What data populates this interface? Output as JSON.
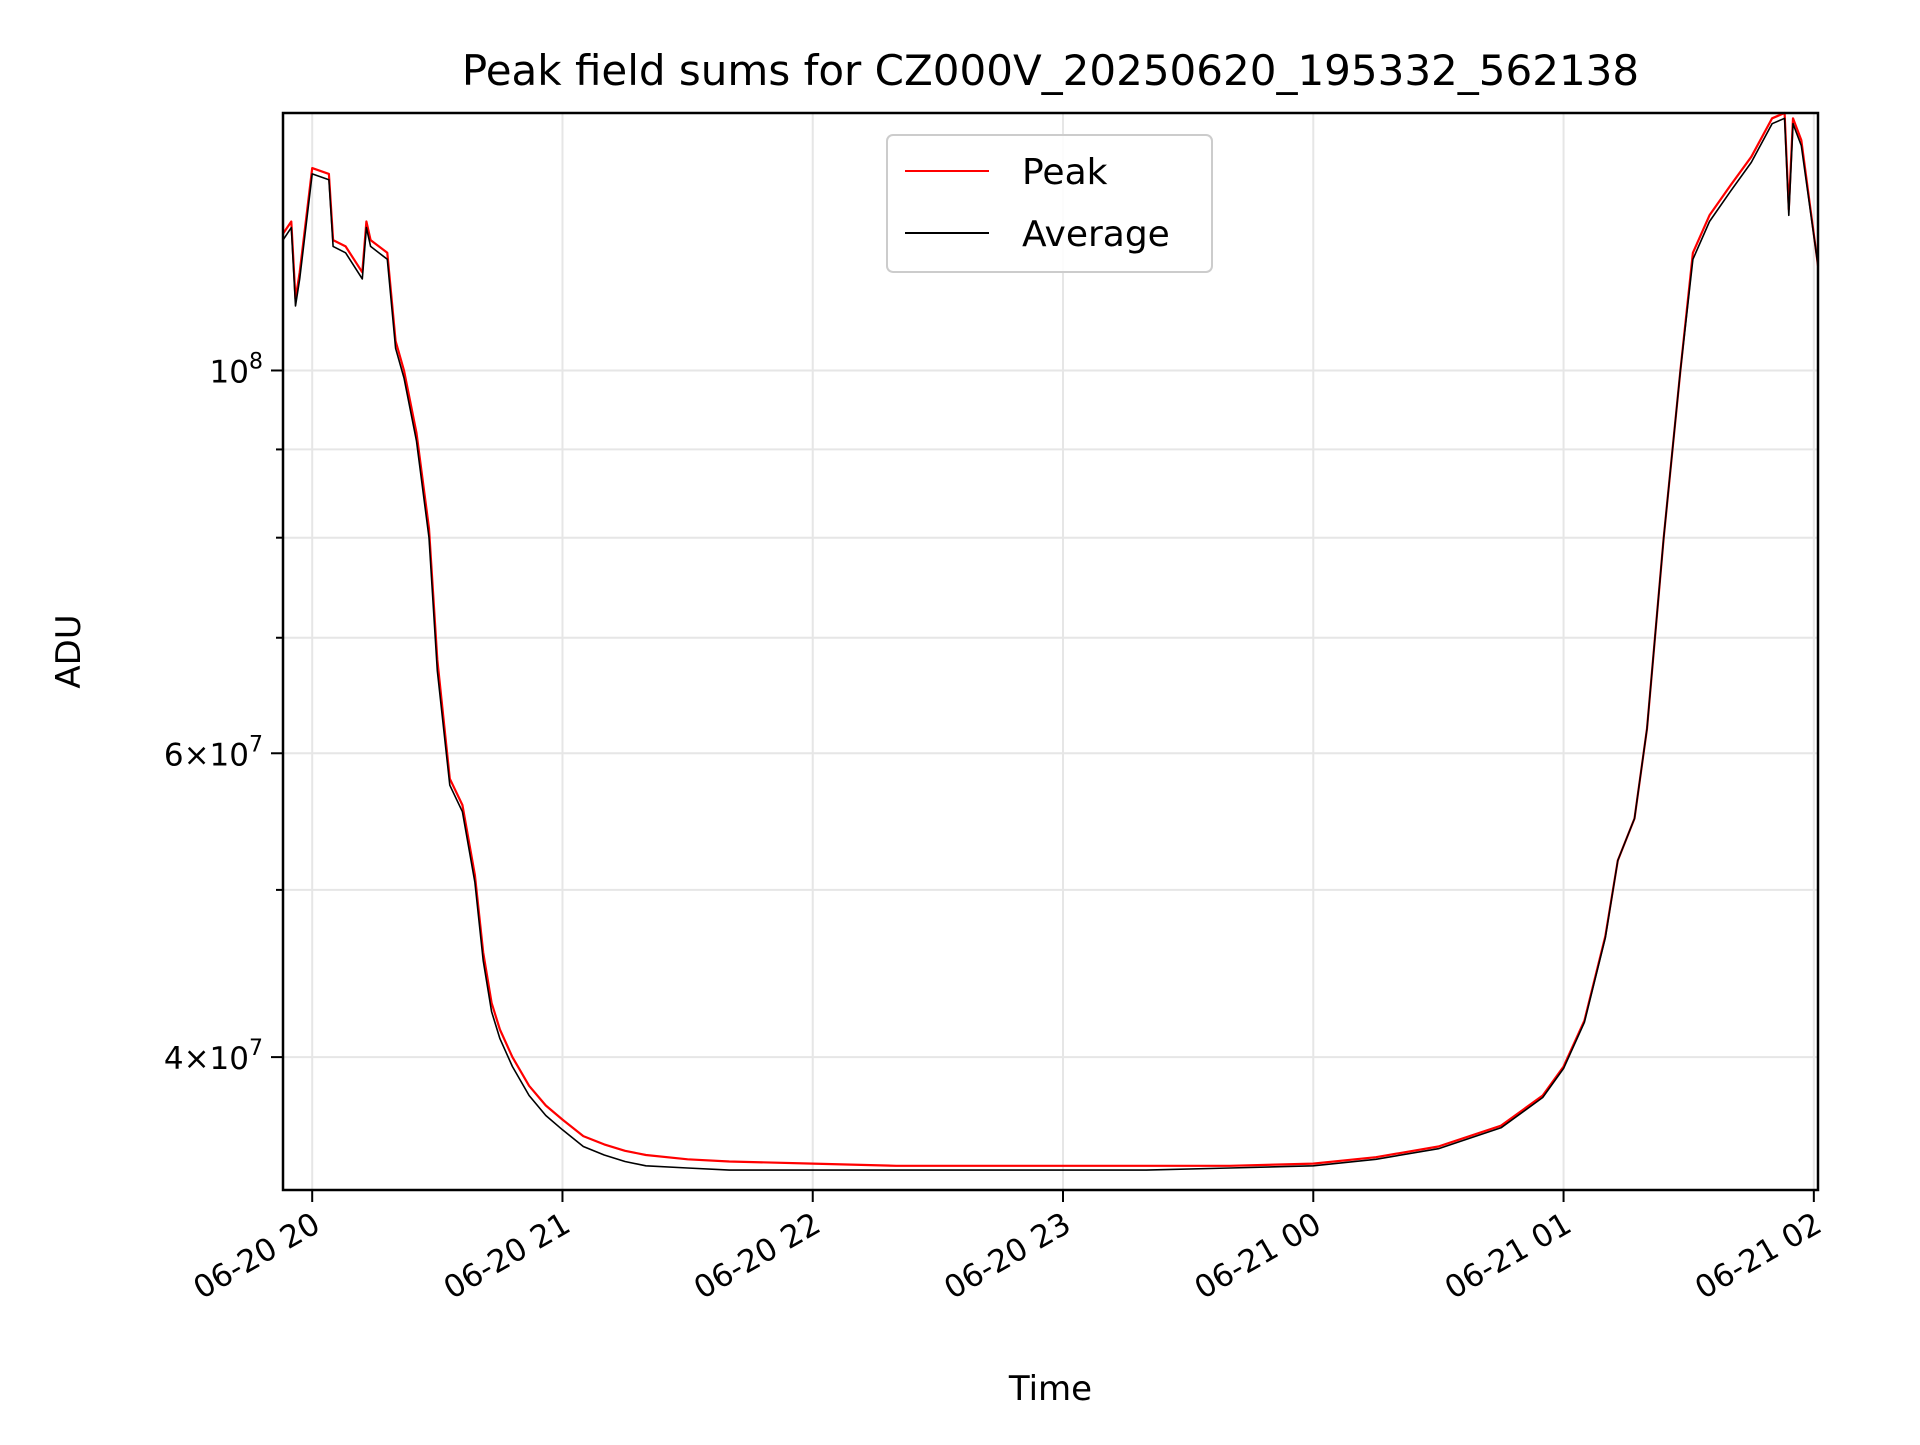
{
  "chart_data": {
    "type": "line",
    "title": "Peak field sums for CZ000V_20250620_195332_562138",
    "xlabel": "Time",
    "ylabel": "ADU",
    "yscale": "log",
    "ylim": [
      33500000,
      141000000
    ],
    "xlim": [
      "2025-06-20 19:53",
      "2025-06-21 02:01"
    ],
    "grid": true,
    "legend_position": "top-center",
    "x_ticks": [
      {
        "value": "2025-06-20 20:00",
        "label": "06-20 20"
      },
      {
        "value": "2025-06-20 21:00",
        "label": "06-20 21"
      },
      {
        "value": "2025-06-20 22:00",
        "label": "06-20 22"
      },
      {
        "value": "2025-06-20 23:00",
        "label": "06-20 23"
      },
      {
        "value": "2025-06-21 00:00",
        "label": "06-21 00"
      },
      {
        "value": "2025-06-21 01:00",
        "label": "06-21 01"
      },
      {
        "value": "2025-06-21 02:00",
        "label": "06-21 02"
      }
    ],
    "y_major_ticks": [
      {
        "value": 100000000,
        "label_mantissa": "",
        "label_base": "10",
        "label_exp": "8"
      },
      {
        "value": 60000000,
        "label_mantissa": "6×",
        "label_base": "10",
        "label_exp": "7"
      },
      {
        "value": 40000000,
        "label_mantissa": "4×",
        "label_base": "10",
        "label_exp": "7"
      }
    ],
    "y_minor_ticks": [
      50000000,
      70000000,
      80000000,
      90000000
    ],
    "series": [
      {
        "name": "Peak",
        "color": "#ff0000",
        "x": [
          "2025-06-20 19:53",
          "2025-06-20 19:55",
          "2025-06-20 19:56",
          "2025-06-20 19:57",
          "2025-06-20 19:59",
          "2025-06-20 20:00",
          "2025-06-20 20:04",
          "2025-06-20 20:05",
          "2025-06-20 20:08",
          "2025-06-20 20:12",
          "2025-06-20 20:13",
          "2025-06-20 20:14",
          "2025-06-20 20:18",
          "2025-06-20 20:20",
          "2025-06-20 20:22",
          "2025-06-20 20:25",
          "2025-06-20 20:28",
          "2025-06-20 20:30",
          "2025-06-20 20:33",
          "2025-06-20 20:36",
          "2025-06-20 20:39",
          "2025-06-20 20:41",
          "2025-06-20 20:43",
          "2025-06-20 20:45",
          "2025-06-20 20:48",
          "2025-06-20 20:52",
          "2025-06-20 20:56",
          "2025-06-20 21:00",
          "2025-06-20 21:05",
          "2025-06-20 21:10",
          "2025-06-20 21:15",
          "2025-06-20 21:20",
          "2025-06-20 21:30",
          "2025-06-20 21:40",
          "2025-06-20 22:00",
          "2025-06-20 22:20",
          "2025-06-20 22:40",
          "2025-06-20 23:00",
          "2025-06-20 23:20",
          "2025-06-20 23:40",
          "2025-06-21 00:00",
          "2025-06-21 00:15",
          "2025-06-21 00:30",
          "2025-06-21 00:45",
          "2025-06-21 00:55",
          "2025-06-21 01:00",
          "2025-06-21 01:05",
          "2025-06-21 01:10",
          "2025-06-21 01:13",
          "2025-06-21 01:17",
          "2025-06-21 01:20",
          "2025-06-21 01:24",
          "2025-06-21 01:28",
          "2025-06-21 01:31",
          "2025-06-21 01:35",
          "2025-06-21 01:40",
          "2025-06-21 01:45",
          "2025-06-21 01:50",
          "2025-06-21 01:53",
          "2025-06-21 01:54",
          "2025-06-21 01:55",
          "2025-06-21 01:57",
          "2025-06-21 02:01"
        ],
        "values": [
          120000000,
          122000000,
          110000000,
          114000000,
          125000000,
          131000000,
          130000000,
          119000000,
          118000000,
          114000000,
          122000000,
          119000000,
          117000000,
          104000000,
          100000000,
          92000000,
          81000000,
          68000000,
          58000000,
          56000000,
          51000000,
          46000000,
          43000000,
          41500000,
          40000000,
          38500000,
          37500000,
          36800000,
          36000000,
          35600000,
          35300000,
          35100000,
          34900000,
          34800000,
          34700000,
          34600000,
          34600000,
          34600000,
          34600000,
          34600000,
          34700000,
          35000000,
          35500000,
          36500000,
          38000000,
          39500000,
          42000000,
          47000000,
          52000000,
          55000000,
          62000000,
          80000000,
          100000000,
          117000000,
          123000000,
          128000000,
          133000000,
          140000000,
          141000000,
          124000000,
          140000000,
          136000000,
          115000000
        ]
      },
      {
        "name": "Average",
        "color": "#000000",
        "x": [
          "2025-06-20 19:53",
          "2025-06-20 19:55",
          "2025-06-20 19:56",
          "2025-06-20 19:57",
          "2025-06-20 19:59",
          "2025-06-20 20:00",
          "2025-06-20 20:04",
          "2025-06-20 20:05",
          "2025-06-20 20:08",
          "2025-06-20 20:12",
          "2025-06-20 20:13",
          "2025-06-20 20:14",
          "2025-06-20 20:18",
          "2025-06-20 20:20",
          "2025-06-20 20:22",
          "2025-06-20 20:25",
          "2025-06-20 20:28",
          "2025-06-20 20:30",
          "2025-06-20 20:33",
          "2025-06-20 20:36",
          "2025-06-20 20:39",
          "2025-06-20 20:41",
          "2025-06-20 20:43",
          "2025-06-20 20:45",
          "2025-06-20 20:48",
          "2025-06-20 20:52",
          "2025-06-20 20:56",
          "2025-06-20 21:00",
          "2025-06-20 21:05",
          "2025-06-20 21:10",
          "2025-06-20 21:15",
          "2025-06-20 21:20",
          "2025-06-20 21:30",
          "2025-06-20 21:40",
          "2025-06-20 22:00",
          "2025-06-20 22:20",
          "2025-06-20 22:40",
          "2025-06-20 23:00",
          "2025-06-20 23:20",
          "2025-06-20 23:40",
          "2025-06-21 00:00",
          "2025-06-21 00:15",
          "2025-06-21 00:30",
          "2025-06-21 00:45",
          "2025-06-21 00:55",
          "2025-06-21 01:00",
          "2025-06-21 01:05",
          "2025-06-21 01:10",
          "2025-06-21 01:13",
          "2025-06-21 01:17",
          "2025-06-21 01:20",
          "2025-06-21 01:24",
          "2025-06-21 01:28",
          "2025-06-21 01:31",
          "2025-06-21 01:35",
          "2025-06-21 01:40",
          "2025-06-21 01:45",
          "2025-06-21 01:50",
          "2025-06-21 01:53",
          "2025-06-21 01:54",
          "2025-06-21 01:55",
          "2025-06-21 01:57",
          "2025-06-21 02:01"
        ],
        "values": [
          119000000,
          121000000,
          109000000,
          113000000,
          124000000,
          130000000,
          129000000,
          118000000,
          117000000,
          113000000,
          121000000,
          118000000,
          116000000,
          103000000,
          99000000,
          91000000,
          80000000,
          67000000,
          57500000,
          55500000,
          50500000,
          45500000,
          42500000,
          41000000,
          39500000,
          38000000,
          37000000,
          36300000,
          35500000,
          35100000,
          34800000,
          34600000,
          34500000,
          34400000,
          34400000,
          34400000,
          34400000,
          34400000,
          34400000,
          34500000,
          34600000,
          34900000,
          35400000,
          36400000,
          37900000,
          39400000,
          41900000,
          46900000,
          52000000,
          55000000,
          62000000,
          80000000,
          100000000,
          116000000,
          122000000,
          127000000,
          132000000,
          139000000,
          140000000,
          123000000,
          139000000,
          135000000,
          115000000
        ]
      }
    ]
  }
}
